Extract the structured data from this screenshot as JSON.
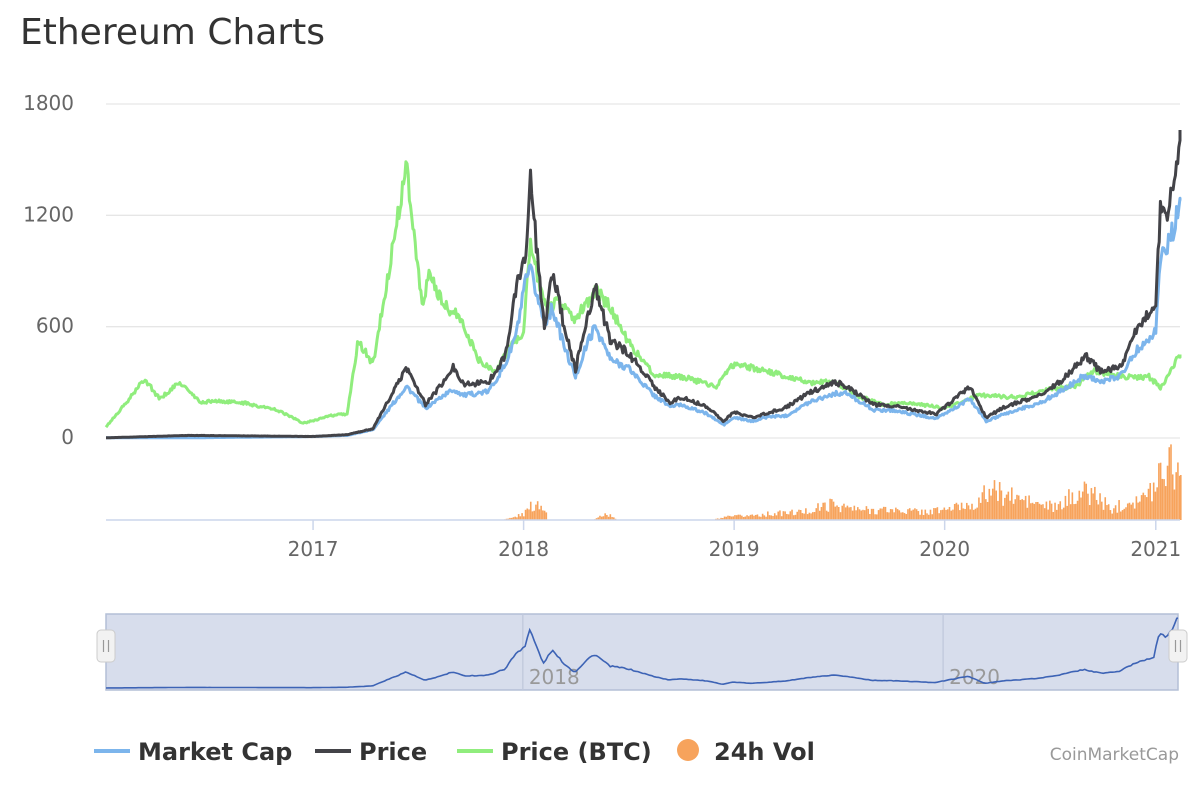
{
  "chart_data": {
    "type": "line",
    "title": "Ethereum Charts",
    "yticks": [
      "0",
      "600",
      "1200",
      "1800"
    ],
    "ylim": [
      0,
      1800
    ],
    "xlim": [
      "2016-01-08",
      "2021-02-12"
    ],
    "xticks": [
      "2017",
      "2018",
      "2019",
      "2020",
      "2021"
    ],
    "grid": true,
    "legend_position": "bottom",
    "navigator": {
      "xticks": [
        "2018",
        "2020"
      ]
    },
    "credit": "CoinMarketCap",
    "series": [
      {
        "name": "Market Cap",
        "color": "#7cb5ec",
        "x": [
          "2016-01-08",
          "2016-06-01",
          "2017-01-01",
          "2017-03-01",
          "2017-04-15",
          "2017-06-12",
          "2017-07-15",
          "2017-08-15",
          "2017-09-01",
          "2017-09-20",
          "2017-11-01",
          "2017-12-01",
          "2017-12-20",
          "2018-01-05",
          "2018-01-13",
          "2018-02-06",
          "2018-02-20",
          "2018-03-15",
          "2018-04-01",
          "2018-04-25",
          "2018-05-06",
          "2018-06-01",
          "2018-07-01",
          "2018-08-15",
          "2018-09-12",
          "2018-10-01",
          "2018-11-15",
          "2018-12-14",
          "2019-01-01",
          "2019-02-01",
          "2019-03-01",
          "2019-04-01",
          "2019-05-15",
          "2019-06-25",
          "2019-07-15",
          "2019-09-01",
          "2019-10-01",
          "2019-12-18",
          "2020-02-14",
          "2020-03-13",
          "2020-04-15",
          "2020-05-15",
          "2020-06-15",
          "2020-07-25",
          "2020-09-01",
          "2020-10-01",
          "2020-11-01",
          "2020-12-01",
          "2021-01-01",
          "2021-01-10",
          "2021-01-20",
          "2021-02-01",
          "2021-02-12"
        ],
        "values": [
          1,
          1,
          8,
          14,
          45,
          280,
          160,
          230,
          260,
          230,
          250,
          400,
          570,
          850,
          900,
          620,
          700,
          470,
          330,
          540,
          600,
          420,
          380,
          230,
          170,
          180,
          130,
          70,
          110,
          90,
          115,
          120,
          200,
          240,
          240,
          150,
          150,
          105,
          210,
          90,
          130,
          160,
          190,
          260,
          340,
          300,
          340,
          480,
          580,
          1000,
          1030,
          1130,
          1280
        ]
      },
      {
        "name": "Price",
        "color": "#434348",
        "x": [
          "2016-01-08",
          "2016-06-01",
          "2017-01-01",
          "2017-03-01",
          "2017-04-15",
          "2017-06-12",
          "2017-07-15",
          "2017-08-15",
          "2017-09-01",
          "2017-09-20",
          "2017-11-01",
          "2017-12-01",
          "2017-12-20",
          "2018-01-05",
          "2018-01-13",
          "2018-02-06",
          "2018-02-20",
          "2018-03-15",
          "2018-04-01",
          "2018-04-25",
          "2018-05-06",
          "2018-06-01",
          "2018-07-01",
          "2018-08-15",
          "2018-09-12",
          "2018-10-01",
          "2018-11-15",
          "2018-12-14",
          "2019-01-01",
          "2019-02-01",
          "2019-03-01",
          "2019-04-01",
          "2019-05-15",
          "2019-06-25",
          "2019-07-15",
          "2019-09-01",
          "2019-10-01",
          "2019-12-18",
          "2020-02-14",
          "2020-03-13",
          "2020-04-15",
          "2020-05-15",
          "2020-06-15",
          "2020-07-25",
          "2020-09-01",
          "2020-10-01",
          "2020-11-01",
          "2020-12-01",
          "2021-01-01",
          "2021-01-10",
          "2021-01-20",
          "2021-02-01",
          "2021-02-12"
        ],
        "values": [
          1,
          14,
          8,
          18,
          50,
          380,
          180,
          300,
          380,
          290,
          300,
          450,
          820,
          1000,
          1380,
          580,
          900,
          560,
          370,
          700,
          800,
          520,
          460,
          280,
          190,
          220,
          170,
          90,
          140,
          110,
          135,
          165,
          250,
          300,
          280,
          180,
          175,
          130,
          280,
          110,
          170,
          200,
          230,
          320,
          440,
          350,
          390,
          600,
          740,
          1280,
          1210,
          1370,
          1660
        ]
      },
      {
        "name": "Price (BTC)",
        "color": "#90ed7d",
        "x": [
          "2016-01-08",
          "2016-02-15",
          "2016-03-15",
          "2016-04-10",
          "2016-05-15",
          "2016-06-20",
          "2016-07-10",
          "2016-09-01",
          "2016-11-01",
          "2016-12-15",
          "2017-02-01",
          "2017-03-01",
          "2017-03-20",
          "2017-04-15",
          "2017-05-15",
          "2017-06-12",
          "2017-07-10",
          "2017-07-20",
          "2017-08-15",
          "2017-09-15",
          "2017-10-15",
          "2017-11-15",
          "2017-12-10",
          "2018-01-01",
          "2018-01-12",
          "2018-02-10",
          "2018-03-01",
          "2018-04-01",
          "2018-05-06",
          "2018-06-01",
          "2018-07-01",
          "2018-08-15",
          "2018-10-01",
          "2018-12-01",
          "2019-01-01",
          "2019-02-15",
          "2019-04-01",
          "2019-05-15",
          "2019-06-26",
          "2019-08-01",
          "2019-09-15",
          "2019-11-01",
          "2020-01-01",
          "2020-03-01",
          "2020-05-01",
          "2020-07-01",
          "2020-08-15",
          "2020-09-15",
          "2020-11-01",
          "2020-12-20",
          "2021-01-10",
          "2021-02-12"
        ],
        "values": [
          60,
          200,
          320,
          210,
          300,
          190,
          200,
          190,
          150,
          80,
          120,
          130,
          520,
          400,
          950,
          1480,
          680,
          900,
          720,
          640,
          420,
          360,
          500,
          560,
          1050,
          680,
          740,
          640,
          800,
          700,
          520,
          340,
          330,
          280,
          400,
          370,
          330,
          300,
          300,
          230,
          180,
          190,
          160,
          230,
          220,
          260,
          280,
          360,
          330,
          330,
          270,
          450
        ]
      }
    ],
    "volume": {
      "name": "24h Vol",
      "color": "#f7a35c",
      "x": [
        "2016-01-08",
        "2017-11-20",
        "2017-12-10",
        "2017-12-31",
        "2018-01-10",
        "2018-01-25",
        "2018-02-10",
        "2018-02-11",
        "2018-05-01",
        "2018-05-20",
        "2018-06-01",
        "2018-06-10",
        "2018-11-20",
        "2018-12-20",
        "2019-03-01",
        "2019-05-01",
        "2019-06-20",
        "2019-08-01",
        "2019-10-01",
        "2019-12-01",
        "2020-01-15",
        "2020-03-01",
        "2020-03-15",
        "2020-05-01",
        "2020-06-15",
        "2020-07-15",
        "2020-08-15",
        "2020-09-15",
        "2020-10-15",
        "2020-11-15",
        "2020-12-15",
        "2021-01-01",
        "2021-01-10",
        "2021-01-25",
        "2021-02-12"
      ],
      "values": [
        0,
        0,
        2,
        6,
        12,
        18,
        10,
        0,
        0,
        6,
        4,
        0,
        0,
        3,
        6,
        8,
        16,
        10,
        10,
        8,
        12,
        18,
        30,
        22,
        15,
        12,
        28,
        26,
        10,
        20,
        22,
        40,
        55,
        62,
        45
      ]
    }
  }
}
